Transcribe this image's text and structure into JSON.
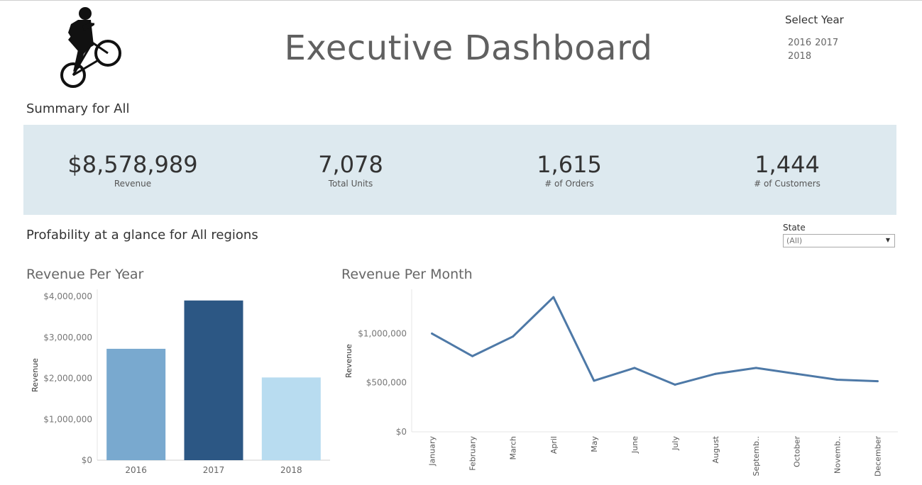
{
  "header": {
    "title": "Executive Dashboard",
    "logo_icon": "bmx-rider-icon"
  },
  "year_filter": {
    "label": "Select Year",
    "options": [
      "2016",
      "2017",
      "2018"
    ]
  },
  "summary": {
    "title": "Summary for All",
    "kpis": [
      {
        "value": "$8,578,989",
        "label": "Revenue"
      },
      {
        "value": "7,078",
        "label": "Total Units"
      },
      {
        "value": "1,615",
        "label": "# of Orders"
      },
      {
        "value": "1,444",
        "label": "# of Customers"
      }
    ],
    "band_color": "#dde9ef"
  },
  "profitability": {
    "title": "Profability at a glance for All regions"
  },
  "state_filter": {
    "label": "State",
    "selected": "(All)"
  },
  "chart_data": [
    {
      "type": "bar",
      "title": "Revenue Per Year",
      "ylabel": "Revenue",
      "xlabel": "",
      "categories": [
        "2016",
        "2017",
        "2018"
      ],
      "values": [
        2720000,
        3900000,
        2020000
      ],
      "colors": [
        "#79a9cf",
        "#2c5784",
        "#b8dcf0"
      ],
      "ylim": [
        0,
        4000000
      ],
      "yticks": [
        0,
        1000000,
        2000000,
        3000000,
        4000000
      ],
      "ytick_labels": [
        "$0",
        "$1,000,000",
        "$2,000,000",
        "$3,000,000",
        "$4,000,000"
      ]
    },
    {
      "type": "line",
      "title": "Revenue Per Month",
      "ylabel": "Revenue",
      "xlabel": "",
      "categories": [
        "January",
        "February",
        "March",
        "April",
        "May",
        "June",
        "July",
        "August",
        "Septemb..",
        "October",
        "Novemb..",
        "December"
      ],
      "values": [
        1000000,
        770000,
        970000,
        1370000,
        520000,
        650000,
        480000,
        590000,
        650000,
        590000,
        530000,
        515000
      ],
      "line_color": "#4e79a7",
      "ylim": [
        0,
        1450000
      ],
      "yticks": [
        0,
        500000,
        1000000
      ],
      "ytick_labels": [
        "$0",
        "$500,000",
        "$1,000,000"
      ]
    }
  ]
}
